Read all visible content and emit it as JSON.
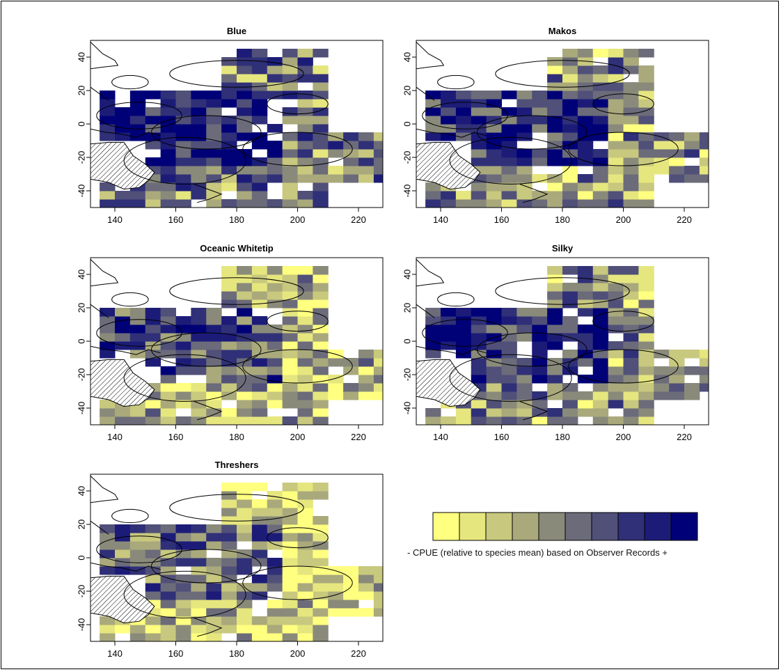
{
  "panels": [
    {
      "title": "Blue",
      "seed": 11,
      "bias": 0.7
    },
    {
      "title": "Makos",
      "seed": 23,
      "bias": 0.6
    },
    {
      "title": "Oceanic Whitetip",
      "seed": 37,
      "bias": 0.5
    },
    {
      "title": "Silky",
      "seed": 51,
      "bias": 0.62
    },
    {
      "title": "Threshers",
      "seed": 73,
      "bias": 0.4
    }
  ],
  "legend": {
    "caption": "- CPUE (relative to species mean) based on Observer Records +",
    "colors": [
      "#FFFF80",
      "#E6E67F",
      "#C8C87E",
      "#A9A97C",
      "#8A8A7B",
      "#6B6B7A",
      "#505079",
      "#303078",
      "#1C1C78",
      "#000077"
    ]
  },
  "chart_data": {
    "type": "heatmap",
    "x_ticks": [
      "140",
      "160",
      "180",
      "200",
      "220"
    ],
    "y_ticks": [
      "-40",
      "-20",
      "0",
      "20",
      "40"
    ],
    "xlim": [
      132,
      228
    ],
    "ylim": [
      -50,
      50
    ],
    "grid": false
  }
}
